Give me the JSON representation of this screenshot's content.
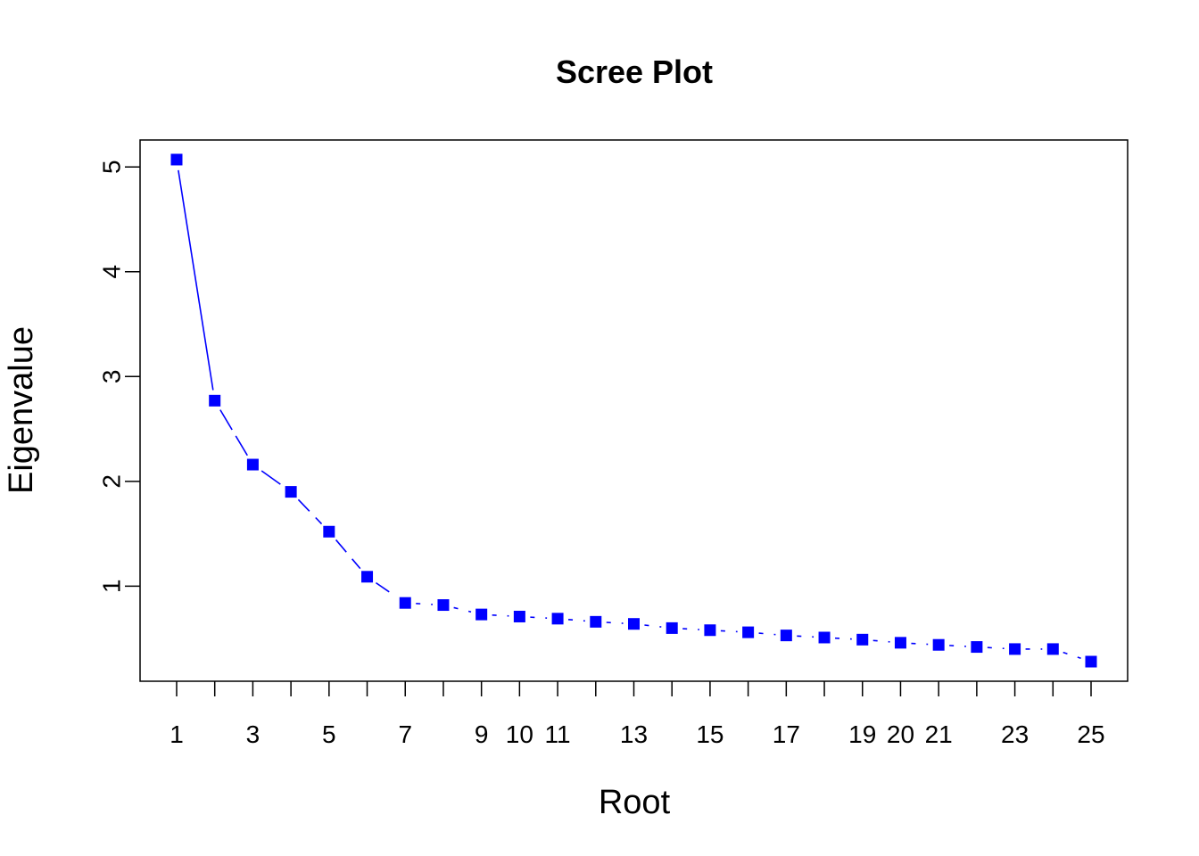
{
  "chart_data": {
    "type": "scatter",
    "title": "Scree Plot",
    "xlabel": "Root",
    "ylabel": "Eigenvalue",
    "x": [
      1,
      2,
      3,
      4,
      5,
      6,
      7,
      8,
      9,
      10,
      11,
      12,
      13,
      14,
      15,
      16,
      17,
      18,
      19,
      20,
      21,
      22,
      23,
      24,
      25
    ],
    "y": [
      5.07,
      2.77,
      2.16,
      1.9,
      1.52,
      1.09,
      0.84,
      0.82,
      0.73,
      0.71,
      0.69,
      0.66,
      0.64,
      0.6,
      0.58,
      0.56,
      0.53,
      0.51,
      0.49,
      0.46,
      0.44,
      0.42,
      0.4,
      0.4,
      0.28
    ],
    "xlim": [
      0.04,
      25.96
    ],
    "ylim": [
      0.093,
      5.257
    ],
    "x_tick_values": [
      1,
      2,
      3,
      4,
      5,
      6,
      7,
      8,
      9,
      10,
      11,
      12,
      13,
      14,
      15,
      16,
      17,
      18,
      19,
      20,
      21,
      22,
      23,
      24,
      25
    ],
    "x_tick_labels": [
      "1",
      "",
      "3",
      "",
      "5",
      "",
      "7",
      "",
      "9",
      "10",
      "11",
      "",
      "13",
      "",
      "15",
      "",
      "17",
      "",
      "19",
      "20",
      "21",
      "",
      "23",
      "",
      "25"
    ],
    "y_ticks": [
      1,
      2,
      3,
      4,
      5
    ],
    "y_tick_labels": [
      "1",
      "2",
      "3",
      "4",
      "5"
    ],
    "grid": false,
    "marker": "square",
    "line_style": "dash-decreasing",
    "color": "#0000ff"
  }
}
